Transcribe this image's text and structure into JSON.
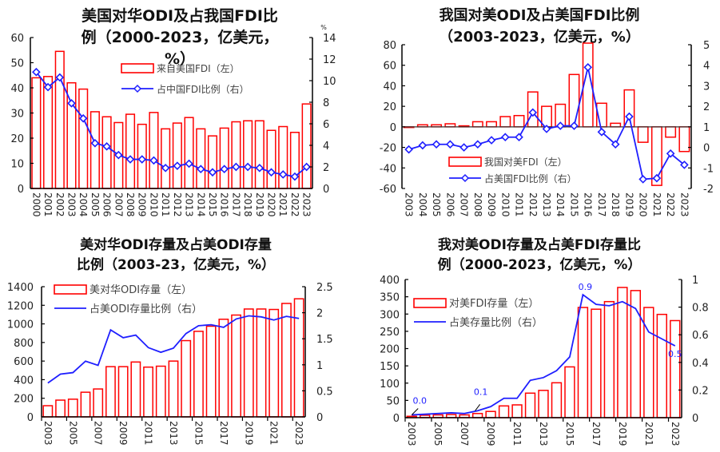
{
  "colors": {
    "bar": "#ff0000",
    "line": "#1f1fff",
    "axis": "#000000",
    "text": "#222222"
  },
  "chart_data": [
    {
      "type": "bar",
      "title_lines": [
        "美国对华ODI及占我国FDI比",
        "例（2000-2023，亿美元，",
        "%）"
      ],
      "right_unit": "%",
      "categories": [
        "2000",
        "2001",
        "2002",
        "2003",
        "2004",
        "2005",
        "2006",
        "2007",
        "2008",
        "2009",
        "2010",
        "2011",
        "2012",
        "2013",
        "2014",
        "2015",
        "2016",
        "2017",
        "2018",
        "2019",
        "2020",
        "2021",
        "2022",
        "2023"
      ],
      "series": [
        {
          "name": "来自美国FDI（左）",
          "axis": "left",
          "kind": "bar",
          "values": [
            44,
            44.5,
            54.5,
            42,
            39.5,
            30.5,
            28.5,
            26.2,
            29.5,
            25.5,
            30.2,
            23.7,
            26,
            28.2,
            23.7,
            20.9,
            24,
            26.5,
            26.9,
            26.9,
            23.1,
            24.6,
            22.3,
            33.6
          ]
        },
        {
          "name": "占中国FDI比例（右）",
          "axis": "right",
          "kind": "line-marker",
          "values": [
            10.8,
            9.4,
            10.3,
            7.9,
            6.5,
            4.2,
            3.9,
            3.1,
            2.7,
            2.7,
            2.6,
            1.9,
            2.1,
            2.3,
            1.8,
            1.5,
            1.8,
            2.0,
            2.0,
            1.9,
            1.5,
            1.3,
            1.1,
            2.0
          ]
        }
      ],
      "ylim_left": [
        0,
        60
      ],
      "yticks_left": [
        "0",
        "10",
        "20",
        "30",
        "40",
        "50",
        "60"
      ],
      "ylim_right": [
        0,
        14
      ],
      "yticks_right": [
        "0",
        "2",
        "4",
        "6",
        "8",
        "10",
        "12",
        "14"
      ],
      "legend_position": "top-center"
    },
    {
      "type": "bar",
      "title_lines": [
        "我国对美ODI及占美国FDI比例",
        "（2003-2023，亿美元，%）"
      ],
      "categories": [
        "2003",
        "2004",
        "2005",
        "2006",
        "2007",
        "2008",
        "2009",
        "2010",
        "2011",
        "2012",
        "2013",
        "2014",
        "2015",
        "2016",
        "2017",
        "2018",
        "2019",
        "2020",
        "2021",
        "2022",
        "2023"
      ],
      "series": [
        {
          "name": "我国对美FDI（左）",
          "axis": "left",
          "kind": "bar",
          "values": [
            -0.5,
            2,
            2,
            3,
            1,
            5,
            5,
            10,
            11,
            34,
            20,
            22,
            51,
            85,
            23,
            3.5,
            36,
            -15,
            -57,
            -10,
            -24
          ]
        },
        {
          "name": "占美国FDI比例（右）",
          "axis": "right",
          "kind": "line-marker",
          "values": [
            -0.1,
            0.1,
            0.15,
            0.15,
            0,
            0.15,
            0.35,
            0.5,
            0.5,
            1.7,
            0.9,
            1.05,
            1.05,
            3.9,
            0.75,
            0.15,
            1.5,
            -1.55,
            -1.5,
            -0.3,
            -0.85
          ]
        }
      ],
      "ylim_left": [
        -60,
        80
      ],
      "yticks_left": [
        "-60",
        "-40",
        "-20",
        "0",
        "20",
        "40",
        "60",
        "80"
      ],
      "ylim_right": [
        -2,
        5
      ],
      "yticks_right": [
        "-2",
        "-1",
        "0",
        "1",
        "2",
        "3",
        "4",
        "5"
      ],
      "legend_position": "bottom-left"
    },
    {
      "type": "bar",
      "title_lines": [
        "美对华ODI存量及占美ODI存量",
        "比例（2003-23，亿美元，%）"
      ],
      "categories": [
        "2003",
        "2004",
        "2005",
        "2006",
        "2007",
        "2008",
        "2009",
        "2010",
        "2011",
        "2012",
        "2013",
        "2014",
        "2015",
        "2016",
        "2017",
        "2018",
        "2019",
        "2020",
        "2021",
        "2022",
        "2023"
      ],
      "xtick_labels": [
        "2003",
        "2005",
        "2007",
        "2009",
        "2011",
        "2013",
        "2015",
        "2017",
        "2019",
        "2021",
        "2023"
      ],
      "series": [
        {
          "name": "美对华ODI存量（左）",
          "axis": "left",
          "kind": "bar",
          "values": [
            120,
            180,
            190,
            265,
            300,
            540,
            540,
            590,
            535,
            545,
            600,
            820,
            920,
            975,
            1050,
            1095,
            1160,
            1160,
            1155,
            1220,
            1270
          ]
        },
        {
          "name": "占美ODI存量比例（右）",
          "axis": "right",
          "kind": "line",
          "values": [
            0.65,
            0.82,
            0.85,
            1.07,
            0.99,
            1.67,
            1.52,
            1.57,
            1.33,
            1.24,
            1.32,
            1.6,
            1.75,
            1.77,
            1.72,
            1.88,
            1.94,
            1.92,
            1.86,
            1.93,
            1.89
          ]
        }
      ],
      "ylim_left": [
        0,
        1400
      ],
      "yticks_left": [
        "0",
        "200",
        "400",
        "600",
        "800",
        "1000",
        "1200",
        "1400"
      ],
      "ylim_right": [
        0,
        2.5
      ],
      "yticks_right": [
        "0",
        "0.5",
        "1",
        "1.5",
        "2",
        "2.5"
      ],
      "legend_position": "top-left"
    },
    {
      "type": "bar",
      "title_lines": [
        "我对美ODI存量及占美FDI存量比",
        "例（2000-2023，亿美元，%）"
      ],
      "categories": [
        "2003",
        "2004",
        "2005",
        "2006",
        "2007",
        "2008",
        "2009",
        "2010",
        "2011",
        "2012",
        "2013",
        "2014",
        "2015",
        "2016",
        "2017",
        "2018",
        "2019",
        "2020",
        "2021",
        "2022",
        "2023"
      ],
      "xtick_labels": [
        "2003",
        "2005",
        "2007",
        "2009",
        "2011",
        "2013",
        "2015",
        "2017",
        "2019",
        "2021",
        "2023"
      ],
      "series": [
        {
          "name": "对美FDI存量（左）",
          "axis": "left",
          "kind": "bar",
          "values": [
            4,
            7,
            8,
            9,
            8,
            12,
            18,
            34,
            37,
            71,
            79,
            101,
            147,
            319,
            314,
            336,
            377,
            368,
            319,
            299,
            281
          ]
        },
        {
          "name": "占美存量比例（右）",
          "axis": "right",
          "kind": "line",
          "values": [
            0.02,
            0.025,
            0.03,
            0.035,
            0.03,
            0.05,
            0.08,
            0.14,
            0.14,
            0.27,
            0.29,
            0.34,
            0.44,
            0.89,
            0.82,
            0.81,
            0.84,
            0.79,
            0.62,
            0.57,
            0.52
          ]
        }
      ],
      "annotations": [
        {
          "text": "0.0",
          "category": "2003"
        },
        {
          "text": "0.1",
          "category": "2008"
        },
        {
          "text": "0.9",
          "category": "2016"
        },
        {
          "text": "0.5",
          "category": "2023"
        }
      ],
      "ylim_left": [
        0,
        400
      ],
      "yticks_left": [
        "0",
        "50",
        "100",
        "150",
        "200",
        "250",
        "300",
        "350",
        "400"
      ],
      "ylim_right": [
        0,
        1
      ],
      "yticks_right": [
        "0",
        "0.2",
        "0.4",
        "0.6",
        "0.8",
        "1"
      ],
      "legend_position": "left-middle"
    }
  ]
}
